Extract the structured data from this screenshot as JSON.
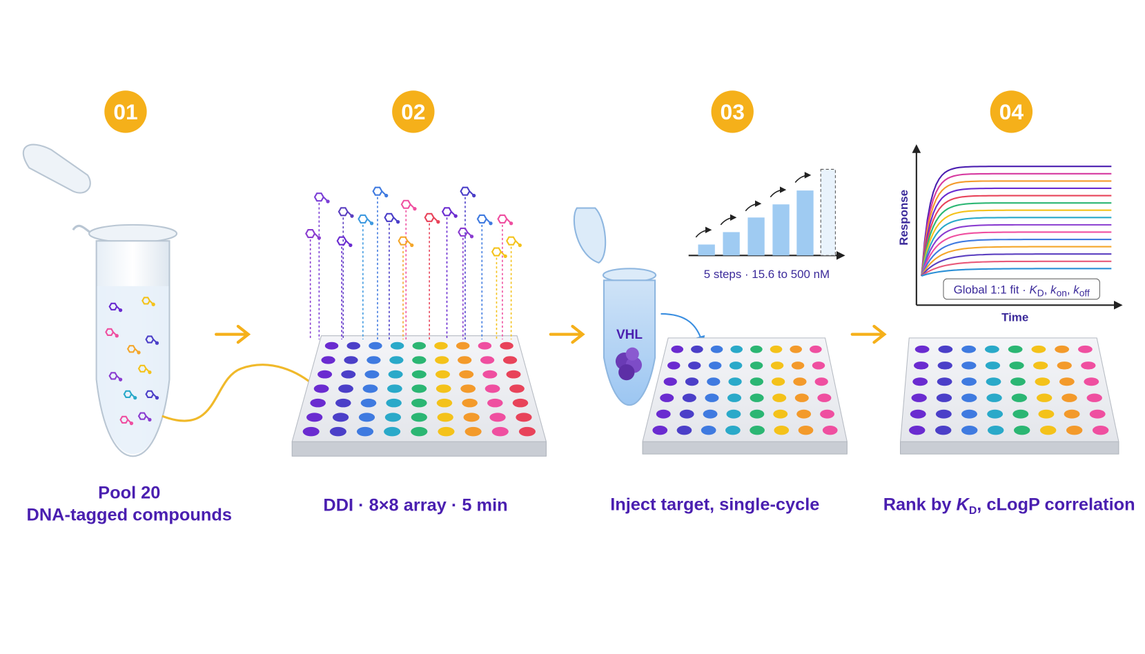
{
  "steps": [
    {
      "number": "01",
      "label_lines": [
        "Pool 20",
        "DNA-tagged compounds"
      ]
    },
    {
      "number": "02",
      "label": "DDI · 8×8 array · 5 min"
    },
    {
      "number": "03",
      "label": "Inject target, single-cycle",
      "tube_label": "VHL",
      "chart_caption": "5 steps · 15.6 to 500 nM"
    },
    {
      "number": "04",
      "label_parts": [
        "Rank by ",
        "K",
        "D",
        ", cLogP correlation"
      ],
      "y_axis": "Response",
      "x_axis": "Time",
      "fit_parts": [
        "Global 1:1 fit · ",
        "K",
        "D",
        ", ",
        "k",
        "on",
        ", ",
        "k",
        "off"
      ]
    }
  ]
}
